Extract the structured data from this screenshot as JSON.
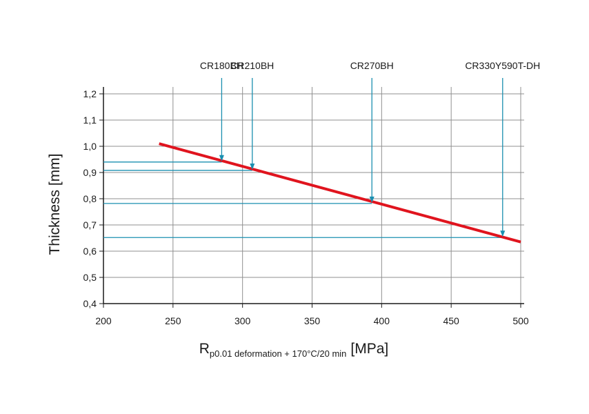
{
  "chart_data": {
    "type": "line",
    "ylabel": "Thickness [mm]",
    "xlabel_main": "R",
    "xlabel_sub": "p0.01 deformation + 170°C/20 min",
    "xlabel_unit": "[MPa]",
    "xlim": [
      200,
      500
    ],
    "ylim": [
      0.4,
      1.2
    ],
    "x_ticks": [
      200,
      250,
      300,
      350,
      400,
      450,
      500
    ],
    "y_ticks": [
      0.4,
      0.5,
      0.6,
      0.7,
      0.8,
      0.9,
      1.0,
      1.1,
      1.2
    ],
    "y_tick_labels": [
      "0,4",
      "0,5",
      "0,6",
      "0,7",
      "0,8",
      "0,9",
      "1,0",
      "1,1",
      "1,2"
    ],
    "grid": true,
    "line_color": "#e0141e",
    "marker_color": "#1a8fb0",
    "series": [
      {
        "x": [
          240,
          500
        ],
        "y": [
          1.01,
          0.635
        ]
      }
    ],
    "materials": [
      {
        "label": "CR180BH",
        "x": 285,
        "y": 0.94
      },
      {
        "label": "CR210BH",
        "x": 307,
        "y": 0.908
      },
      {
        "label": "CR270BH",
        "x": 393,
        "y": 0.782
      },
      {
        "label": "CR330Y590T-DH",
        "x": 487,
        "y": 0.652
      }
    ]
  }
}
